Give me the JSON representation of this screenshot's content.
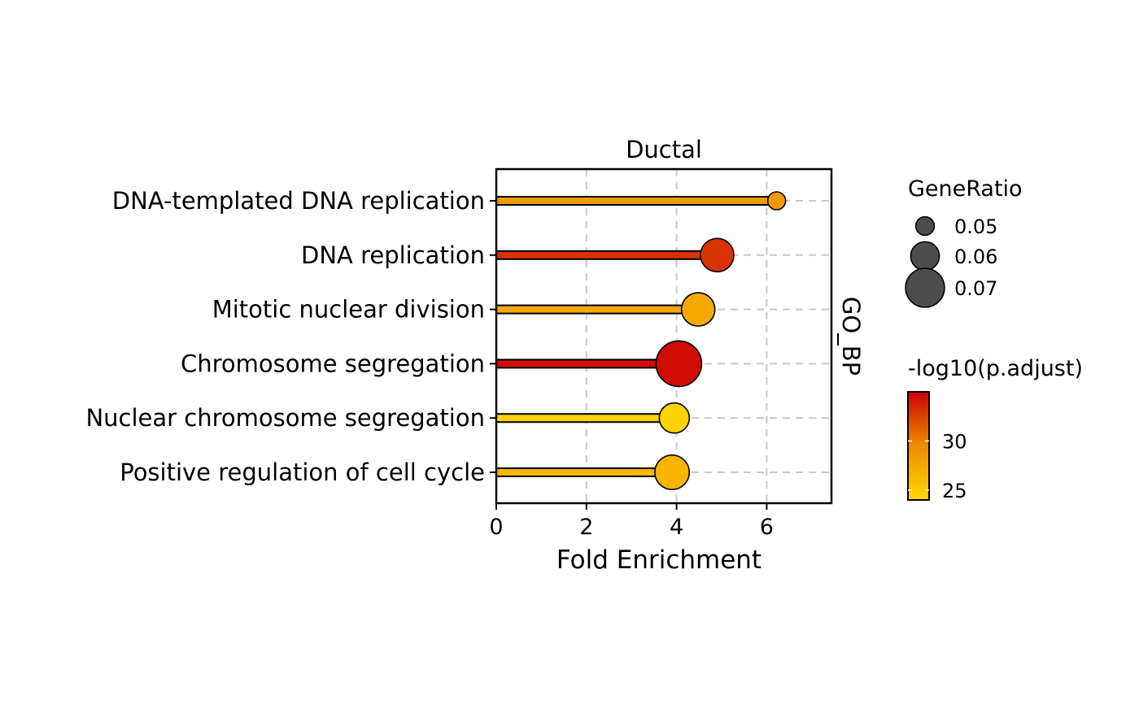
{
  "chart_data": {
    "type": "lollipop",
    "title": "Ductal",
    "facet_label": "GO_BP",
    "xlabel": "Fold Enrichment",
    "ylabel": "",
    "xlim": [
      0,
      7.45
    ],
    "xticks": [
      0,
      2,
      4,
      6
    ],
    "grid": "dashed vertical and horizontal",
    "categories": [
      "DNA-templated DNA replication",
      "DNA replication",
      "Mitotic nuclear division",
      "Chromosome segregation",
      "Nuclear chromosome segregation",
      "Positive regulation of cell cycle"
    ],
    "values": [
      6.22,
      4.9,
      4.48,
      4.05,
      3.95,
      3.9
    ],
    "gene_ratio": [
      0.048,
      0.062,
      0.062,
      0.073,
      0.059,
      0.063
    ],
    "neg_log10_padj": [
      28.5,
      33.0,
      27.4,
      34.5,
      24.3,
      26.5
    ],
    "size_legend": {
      "title": "GeneRatio",
      "values": [
        0.05,
        0.06,
        0.07
      ],
      "labels": [
        "0.05",
        "0.06",
        "0.07"
      ]
    },
    "color_legend": {
      "title": "-log10(p.adjust)",
      "range": [
        24,
        35
      ],
      "ticks": [
        25,
        30
      ],
      "tick_labels": [
        "25",
        "30"
      ],
      "colors": [
        "#FFD700",
        "#EE8C00",
        "#CC0000"
      ]
    },
    "legend_position": "right"
  }
}
